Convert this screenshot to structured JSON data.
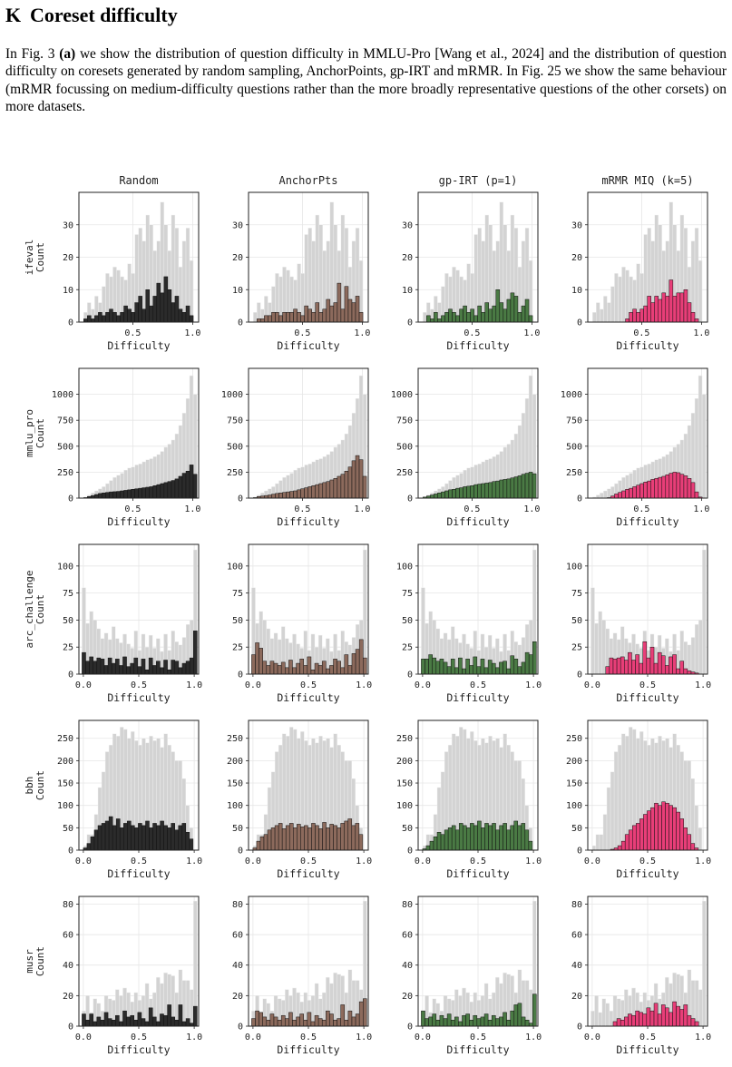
{
  "section": {
    "number": "K",
    "title": "Coreset difficulty"
  },
  "paragraph": {
    "p1": "In Fig. 3 ",
    "p2": "(a)",
    "p3": " we show the distribution of question difficulty in MMLU-Pro [Wang et al., 2024] and the distribution of question difficulty on coresets generated by random sampling, AnchorPoints, gp-IRT and mRMR. In Fig. 25 we show the same behaviour (mRMR focussing on medium-difficulty questions rather than the more broadly representative questions of the other corsets) on more datasets."
  },
  "chart_data": {
    "type": "bar",
    "description": "Grid of histograms: rows are datasets, columns are coreset methods. Grey bars = full dataset difficulty distribution, colored bars = coreset distribution.",
    "columns": [
      {
        "title": "Random",
        "color": "#2b2b2b"
      },
      {
        "title": "AnchorPts",
        "color": "#8c6a5c"
      },
      {
        "title": "gp-IRT (p=1)",
        "color": "#4a7a44"
      },
      {
        "title": "mRMR MIQ (k=5)",
        "color": "#e83e78"
      }
    ],
    "full_color": "#d3d3d3",
    "xlabel": "Difficulty",
    "ylabel": "Count",
    "rows": [
      {
        "name": "ifeval",
        "xlim": [
          0.05,
          1.05
        ],
        "xticks": [
          0.5,
          1.0
        ],
        "xtick_labels": [
          "0.5",
          "1.0"
        ],
        "ylim": [
          0,
          40
        ],
        "yticks": [
          0,
          10,
          20,
          30
        ],
        "bin_start": 0.09,
        "bin_width": 0.0305,
        "full": [
          3,
          6,
          4,
          8,
          6,
          11,
          15,
          14,
          17,
          16,
          14,
          13,
          18,
          15,
          27,
          29,
          25,
          33,
          30,
          22,
          25,
          37,
          30,
          22,
          33,
          29,
          17,
          25,
          29,
          19
        ],
        "series": [
          [
            1,
            2,
            1,
            2,
            3,
            2,
            3,
            4,
            3,
            2,
            3,
            5,
            4,
            3,
            6,
            8,
            4,
            10,
            5,
            8,
            12,
            9,
            14,
            10,
            6,
            8,
            4,
            3,
            5,
            2
          ],
          [
            0,
            1,
            1,
            2,
            2,
            3,
            3,
            2,
            3,
            3,
            3,
            4,
            3,
            2,
            5,
            4,
            3,
            6,
            3,
            4,
            7,
            5,
            6,
            12,
            4,
            11,
            7,
            6,
            8,
            3
          ],
          [
            0,
            2,
            1,
            3,
            1,
            2,
            3,
            4,
            3,
            2,
            4,
            5,
            3,
            4,
            2,
            5,
            3,
            6,
            4,
            5,
            10,
            6,
            4,
            7,
            9,
            8,
            3,
            5,
            7,
            2
          ],
          [
            0,
            0,
            0,
            0,
            0,
            0,
            0,
            0,
            0,
            1,
            3,
            4,
            3,
            4,
            5,
            8,
            6,
            8,
            7,
            9,
            8,
            13,
            8,
            9,
            9,
            10,
            6,
            3,
            1,
            0
          ]
        ]
      },
      {
        "name": "mmlu_pro",
        "xlim": [
          0.05,
          1.05
        ],
        "xticks": [
          0.5,
          1.0
        ],
        "xtick_labels": [
          "0.5",
          "1.0"
        ],
        "ylim": [
          0,
          1250
        ],
        "yticks": [
          0,
          250,
          500,
          750,
          1000
        ],
        "bin_start": 0.09,
        "bin_width": 0.0305,
        "full": [
          10,
          30,
          50,
          70,
          90,
          110,
          140,
          170,
          200,
          220,
          240,
          270,
          290,
          300,
          320,
          330,
          350,
          370,
          380,
          400,
          420,
          450,
          490,
          520,
          560,
          620,
          700,
          820,
          960,
          1180,
          1000
        ],
        "series": [
          [
            5,
            15,
            25,
            35,
            45,
            50,
            55,
            60,
            62,
            65,
            70,
            75,
            80,
            85,
            90,
            95,
            100,
            105,
            110,
            120,
            130,
            140,
            150,
            160,
            170,
            185,
            210,
            240,
            260,
            320,
            230
          ],
          [
            5,
            15,
            20,
            25,
            30,
            38,
            45,
            50,
            55,
            60,
            65,
            70,
            80,
            90,
            100,
            110,
            120,
            130,
            140,
            150,
            160,
            175,
            190,
            210,
            230,
            260,
            300,
            360,
            410,
            370,
            210
          ],
          [
            10,
            20,
            30,
            40,
            50,
            60,
            70,
            80,
            85,
            95,
            100,
            110,
            115,
            120,
            130,
            135,
            140,
            145,
            150,
            160,
            165,
            175,
            180,
            185,
            195,
            205,
            215,
            230,
            240,
            250,
            235
          ],
          [
            0,
            0,
            0,
            0,
            5,
            20,
            40,
            55,
            70,
            85,
            95,
            110,
            125,
            140,
            155,
            165,
            180,
            190,
            200,
            210,
            225,
            240,
            250,
            245,
            230,
            215,
            190,
            150,
            60,
            10,
            0
          ]
        ]
      },
      {
        "name": "arc_challenge",
        "xlim": [
          -0.04,
          1.04
        ],
        "xticks": [
          0.0,
          0.5,
          1.0
        ],
        "xtick_labels": [
          "0.0",
          "0.5",
          "1.0"
        ],
        "ylim": [
          0,
          120
        ],
        "yticks": [
          0,
          25,
          50,
          75,
          100
        ],
        "bin_start": -0.012,
        "bin_width": 0.0335,
        "full": [
          80,
          47,
          58,
          50,
          42,
          33,
          38,
          32,
          44,
          33,
          29,
          37,
          28,
          24,
          40,
          22,
          37,
          25,
          36,
          24,
          33,
          21,
          37,
          22,
          40,
          30,
          27,
          34,
          46,
          50,
          115
        ],
        "series": [
          [
            20,
            12,
            16,
            12,
            15,
            14,
            8,
            15,
            10,
            14,
            8,
            16,
            7,
            10,
            15,
            7,
            14,
            4,
            15,
            8,
            12,
            6,
            13,
            4,
            13,
            12,
            6,
            10,
            12,
            15,
            40
          ],
          [
            18,
            29,
            24,
            12,
            8,
            12,
            10,
            8,
            11,
            6,
            13,
            6,
            10,
            14,
            8,
            16,
            4,
            10,
            8,
            12,
            5,
            8,
            14,
            12,
            6,
            18,
            8,
            19,
            23,
            32,
            15
          ],
          [
            14,
            14,
            18,
            15,
            12,
            14,
            11,
            7,
            14,
            6,
            15,
            5,
            14,
            8,
            16,
            7,
            14,
            6,
            13,
            10,
            6,
            11,
            12,
            5,
            17,
            14,
            7,
            11,
            20,
            18,
            30
          ],
          [
            0,
            0,
            0,
            0,
            7,
            15,
            14,
            15,
            16,
            13,
            20,
            13,
            18,
            10,
            30,
            15,
            25,
            10,
            20,
            17,
            8,
            16,
            18,
            5,
            12,
            5,
            3,
            2,
            1,
            0,
            0
          ]
        ]
      },
      {
        "name": "bbh",
        "xlim": [
          -0.04,
          1.04
        ],
        "xticks": [
          0.0,
          0.5,
          1.0
        ],
        "xtick_labels": [
          "0.0",
          "0.5",
          "1.0"
        ],
        "ylim": [
          0,
          290
        ],
        "yticks": [
          0,
          50,
          100,
          150,
          200,
          250
        ],
        "bin_start": 0.0,
        "bin_width": 0.033,
        "full": [
          10,
          35,
          35,
          80,
          140,
          175,
          220,
          235,
          260,
          255,
          275,
          270,
          250,
          265,
          245,
          235,
          250,
          240,
          255,
          245,
          250,
          230,
          260,
          235,
          220,
          200,
          200,
          160,
          100,
          50
        ],
        "series": [
          [
            5,
            15,
            30,
            45,
            55,
            60,
            65,
            75,
            55,
            70,
            50,
            60,
            65,
            55,
            50,
            60,
            55,
            65,
            50,
            60,
            55,
            65,
            55,
            50,
            60,
            45,
            55,
            60,
            40,
            25
          ],
          [
            5,
            20,
            30,
            35,
            45,
            50,
            55,
            60,
            48,
            55,
            60,
            50,
            58,
            52,
            55,
            50,
            60,
            55,
            48,
            62,
            50,
            58,
            55,
            50,
            60,
            65,
            70,
            55,
            60,
            35
          ],
          [
            3,
            10,
            20,
            30,
            40,
            35,
            45,
            50,
            55,
            45,
            60,
            55,
            50,
            60,
            55,
            65,
            50,
            60,
            55,
            60,
            45,
            55,
            60,
            45,
            55,
            65,
            55,
            60,
            45,
            20
          ],
          [
            0,
            0,
            0,
            0,
            0,
            2,
            5,
            10,
            20,
            35,
            45,
            55,
            60,
            70,
            80,
            88,
            95,
            105,
            100,
            108,
            105,
            100,
            95,
            85,
            70,
            50,
            35,
            15,
            5,
            0
          ]
        ]
      },
      {
        "name": "musr",
        "xlim": [
          -0.04,
          1.04
        ],
        "xticks": [
          0.0,
          0.5,
          1.0
        ],
        "xtick_labels": [
          "0.0",
          "0.5",
          "1.0"
        ],
        "ylim": [
          0,
          85
        ],
        "yticks": [
          0,
          20,
          40,
          60,
          80
        ],
        "bin_start": -0.012,
        "bin_width": 0.0335,
        "full": [
          10,
          20,
          9,
          18,
          15,
          10,
          20,
          18,
          17,
          24,
          20,
          25,
          22,
          16,
          22,
          17,
          20,
          28,
          18,
          22,
          32,
          28,
          35,
          34,
          33,
          22,
          37,
          30,
          30,
          24,
          82
        ],
        "series": [
          [
            8,
            4,
            8,
            3,
            6,
            4,
            9,
            5,
            4,
            7,
            3,
            10,
            6,
            7,
            4,
            9,
            5,
            3,
            12,
            6,
            3,
            8,
            7,
            14,
            6,
            4,
            14,
            3,
            5,
            2,
            13
          ],
          [
            5,
            10,
            9,
            6,
            4,
            8,
            6,
            4,
            7,
            5,
            9,
            4,
            6,
            8,
            4,
            9,
            3,
            7,
            5,
            4,
            10,
            8,
            4,
            5,
            14,
            4,
            10,
            6,
            8,
            16,
            18
          ],
          [
            10,
            5,
            6,
            8,
            4,
            7,
            5,
            8,
            4,
            6,
            3,
            7,
            8,
            4,
            7,
            5,
            6,
            8,
            4,
            7,
            5,
            6,
            9,
            4,
            10,
            14,
            15,
            6,
            4,
            2,
            21
          ],
          [
            0,
            0,
            0,
            0,
            0,
            0,
            3,
            5,
            4,
            6,
            8,
            7,
            10,
            9,
            8,
            12,
            10,
            15,
            8,
            14,
            12,
            9,
            16,
            13,
            11,
            14,
            7,
            5,
            3,
            0,
            0
          ]
        ]
      }
    ]
  }
}
